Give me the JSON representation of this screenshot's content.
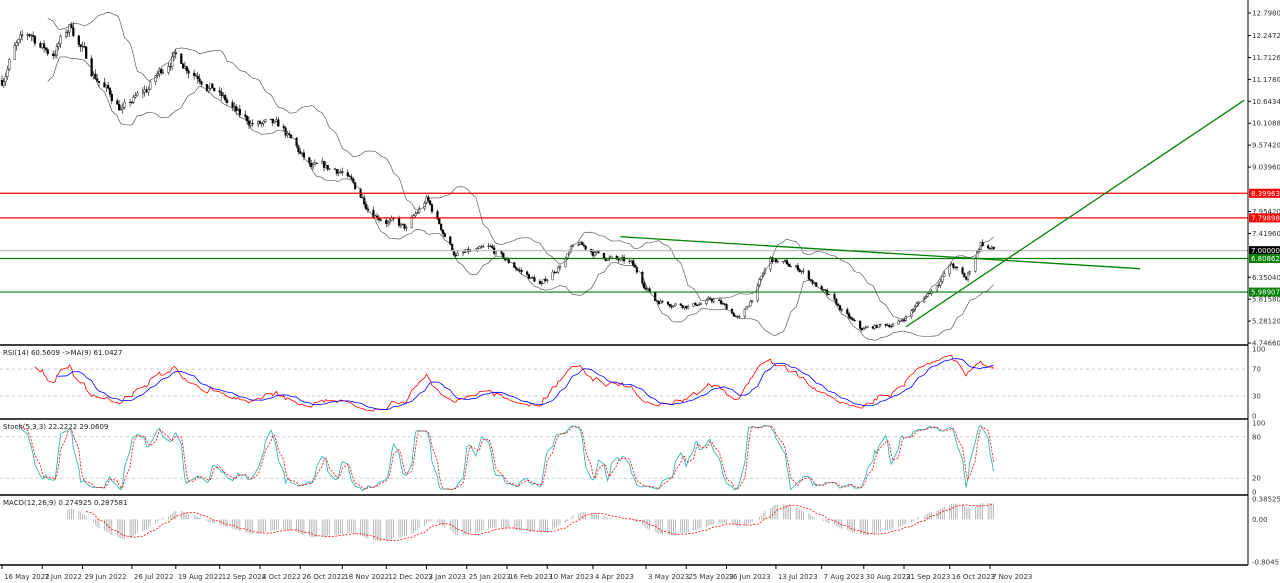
{
  "chart_data": {
    "type": "candlestick",
    "price_axis": {
      "ylim": [
        4.7466,
        12.798
      ],
      "ticks": [
        "12.79800",
        "12.24720",
        "11.71260",
        "11.17800",
        "10.64340",
        "10.10880",
        "9.57420",
        "9.03960",
        "7.95420",
        "7.41960",
        "6.35040",
        "5.81580",
        "5.28120",
        "4.74660"
      ]
    },
    "date_axis": {
      "range": [
        "2022-05-16",
        "2023-11-09"
      ],
      "ticks": [
        {
          "date": "2022-05-16",
          "label": "16 May 2022"
        },
        {
          "date": "2022-06-07",
          "label": "7 Jun 2022"
        },
        {
          "date": "2022-06-29",
          "label": "29 Jun 2022"
        },
        {
          "date": "2022-07-26",
          "label": "26 Jul 2022"
        },
        {
          "date": "2022-08-19",
          "label": "19 Aug 2022"
        },
        {
          "date": "2022-09-12",
          "label": "12 Sep 2022"
        },
        {
          "date": "2022-10-04",
          "label": "4 Oct 2022"
        },
        {
          "date": "2022-10-26",
          "label": "26 Oct 2022"
        },
        {
          "date": "2022-11-18",
          "label": "18 Nov 2022"
        },
        {
          "date": "2022-12-12",
          "label": "12 Dec 2022"
        },
        {
          "date": "2023-01-03",
          "label": "3 Jan 2023"
        },
        {
          "date": "2023-01-25",
          "label": "25 Jan 2023"
        },
        {
          "date": "2023-02-16",
          "label": "16 Feb 2023"
        },
        {
          "date": "2023-03-10",
          "label": "10 Mar 2023"
        },
        {
          "date": "2023-04-04",
          "label": "4 Apr 2023"
        },
        {
          "date": "2023-05-03",
          "label": "3 May 2023"
        },
        {
          "date": "2023-05-25",
          "label": "25 May 2023"
        },
        {
          "date": "2023-06-16",
          "label": "16 Jun 2023"
        },
        {
          "date": "2023-07-13",
          "label": "13 Jul 2023"
        },
        {
          "date": "2023-08-07",
          "label": "7 Aug 2023"
        },
        {
          "date": "2023-08-30",
          "label": "30 Aug 2023"
        },
        {
          "date": "2023-09-21",
          "label": "21 Sep 2023"
        },
        {
          "date": "2023-10-16",
          "label": "16 Oct 2023"
        },
        {
          "date": "2023-11-07",
          "label": "7 Nov 2023"
        }
      ]
    },
    "price_path": [
      [
        "2022-05-16",
        11.16
      ],
      [
        "2022-05-22",
        11.9
      ],
      [
        "2022-06-01",
        12.26
      ],
      [
        "2022-06-12",
        11.77
      ],
      [
        "2022-06-23",
        12.5
      ],
      [
        "2022-07-04",
        11.4
      ],
      [
        "2022-07-21",
        10.43
      ],
      [
        "2022-08-03",
        10.9
      ],
      [
        "2022-08-17",
        11.77
      ],
      [
        "2022-09-02",
        11.29
      ],
      [
        "2022-09-24",
        10.19
      ],
      [
        "2022-10-16",
        9.94
      ],
      [
        "2022-11-01",
        8.97
      ],
      [
        "2022-11-17",
        8.97
      ],
      [
        "2022-12-04",
        7.99
      ],
      [
        "2022-12-23",
        7.5
      ],
      [
        "2023-01-03",
        8.23
      ],
      [
        "2023-01-19",
        6.89
      ],
      [
        "2023-02-07",
        7.0
      ],
      [
        "2023-03-07",
        6.16
      ],
      [
        "2023-03-26",
        7.14
      ],
      [
        "2023-04-08",
        6.89
      ],
      [
        "2023-04-25",
        6.65
      ],
      [
        "2023-05-08",
        5.8
      ],
      [
        "2023-05-27",
        5.67
      ],
      [
        "2023-06-10",
        5.8
      ],
      [
        "2023-06-24",
        5.31
      ],
      [
        "2023-07-10",
        6.77
      ],
      [
        "2023-07-27",
        6.53
      ],
      [
        "2023-08-12",
        5.8
      ],
      [
        "2023-08-28",
        5.06
      ],
      [
        "2023-09-19",
        5.26
      ],
      [
        "2023-10-06",
        6.04
      ],
      [
        "2023-10-17",
        6.65
      ],
      [
        "2023-10-25",
        6.28
      ],
      [
        "2023-11-02",
        7.21
      ],
      [
        "2023-11-09",
        7.0
      ]
    ],
    "horizontal_levels": [
      {
        "value": 8.39963,
        "label": "8.39963",
        "color": "#ff0000"
      },
      {
        "value": 7.79898,
        "label": "7.79898",
        "color": "#ff0000"
      },
      {
        "value": 7.0,
        "label": "7.00000",
        "color": "#c0c0c0",
        "tag_color": "#000000"
      },
      {
        "value": 6.80862,
        "label": "6.80862",
        "color": "#008000"
      },
      {
        "value": 5.98907,
        "label": "5.98907",
        "color": "#008000"
      }
    ],
    "trend_lines": [
      {
        "from": [
          "2023-04-19",
          7.34
        ],
        "to": [
          "2024-01-28",
          6.56
        ],
        "color": "#008000"
      },
      {
        "from": [
          "2023-09-22",
          5.14
        ],
        "to": [
          "2024-03-25",
          10.67
        ],
        "color": "#008000"
      }
    ],
    "overlays": [
      "Bollinger Bands"
    ],
    "indicators": {
      "rsi": {
        "header": "RSI(14) 60.5609  ->MA(9) 61.0427",
        "ticks": [
          "100",
          "70",
          "30",
          "0"
        ],
        "levels": [
          70,
          30
        ],
        "ylim": [
          0,
          100
        ],
        "colors": {
          "rsi": "#ff0000",
          "ma": "#0000ff"
        }
      },
      "stoch": {
        "header": "Stoch(5,3,3) 22.2222 29.0609",
        "ticks": [
          "100",
          "80",
          "20",
          "0"
        ],
        "levels": [
          80,
          20
        ],
        "ylim": [
          0,
          100
        ],
        "colors": {
          "main": "#20b2aa",
          "signal": "#ff0000"
        }
      },
      "macd": {
        "header": "MACD(12,26,9) 0.274925 0.287581",
        "ticks": [
          "0.385255",
          "0.00",
          "-0.804576"
        ],
        "ylim": [
          -0.804576,
          0.385255
        ],
        "colors": {
          "histogram": "#a0a0a0",
          "signal": "#ff0000"
        }
      }
    }
  }
}
